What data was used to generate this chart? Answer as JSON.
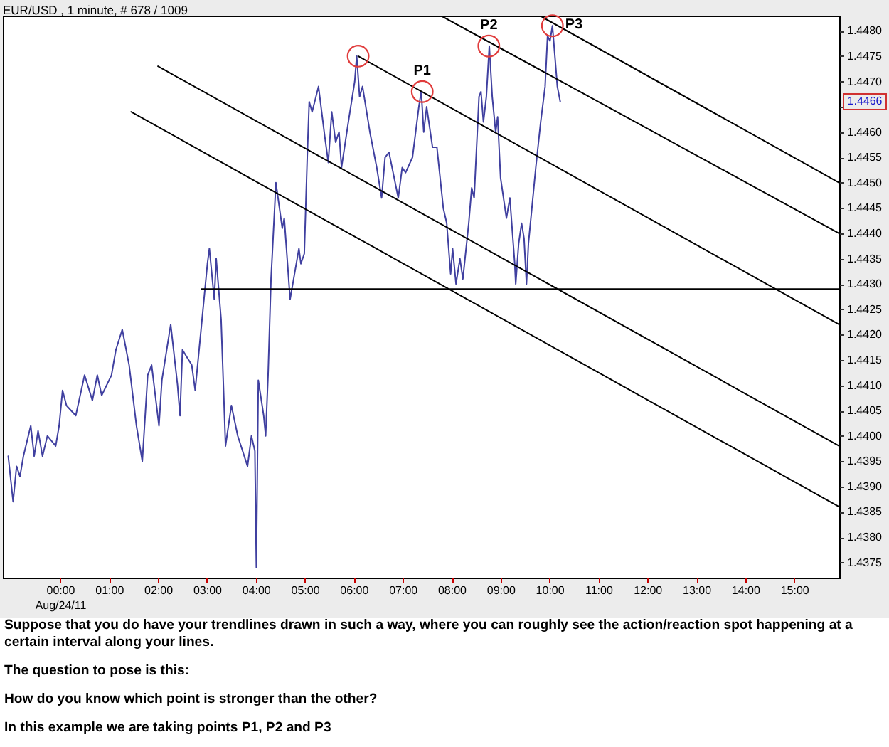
{
  "chart_data": {
    "type": "line",
    "title": "EUR/USD , 1 minute, # 678 / 1009",
    "xlim": [
      -1.17,
      15.92
    ],
    "ylim": [
      1.4372,
      1.4483
    ],
    "xticks": [
      {
        "value": 0,
        "label": "00:00\nAug/24/11"
      },
      {
        "value": 1,
        "label": "01:00"
      },
      {
        "value": 2,
        "label": "02:00"
      },
      {
        "value": 3,
        "label": "03:00"
      },
      {
        "value": 4,
        "label": "04:00"
      },
      {
        "value": 5,
        "label": "05:00"
      },
      {
        "value": 6,
        "label": "06:00"
      },
      {
        "value": 7,
        "label": "07:00"
      },
      {
        "value": 8,
        "label": "08:00"
      },
      {
        "value": 9,
        "label": "09:00"
      },
      {
        "value": 10,
        "label": "10:00"
      },
      {
        "value": 11,
        "label": "11:00"
      },
      {
        "value": 12,
        "label": "12:00"
      },
      {
        "value": 13,
        "label": "13:00"
      },
      {
        "value": 14,
        "label": "14:00"
      },
      {
        "value": 15,
        "label": "15:00"
      }
    ],
    "yticks": [
      1.4375,
      {
        "value": 1.438,
        "label": "1.4380"
      },
      1.4385,
      {
        "value": 1.439,
        "label": "1.4390"
      },
      1.4395,
      {
        "value": 1.44,
        "label": "1.4400"
      },
      1.4405,
      {
        "value": 1.441,
        "label": "1.4410"
      },
      1.4415,
      {
        "value": 1.442,
        "label": "1.4420"
      },
      1.4425,
      {
        "value": 1.443,
        "label": "1.4430"
      },
      1.4435,
      {
        "value": 1.444,
        "label": "1.4440"
      },
      1.4445,
      {
        "value": 1.445,
        "label": "1.4450"
      },
      1.4455,
      {
        "value": 1.446,
        "label": "1.4460"
      },
      {
        "value": 1.4465,
        "label": null
      },
      {
        "value": 1.447,
        "label": "1.4470"
      },
      1.4475,
      {
        "value": 1.448,
        "label": "1.4480"
      }
    ],
    "series": [
      {
        "color": "#4040a0",
        "x": [
          -1.06,
          -0.96,
          -0.89,
          -0.82,
          -0.75,
          -0.6,
          -0.53,
          -0.45,
          -0.36,
          -0.26,
          -0.09,
          -0.02,
          0.05,
          0.13,
          0.32,
          0.5,
          0.66,
          0.76,
          0.85,
          1.05,
          1.14,
          1.27,
          1.41,
          1.56,
          1.68,
          1.79,
          1.87,
          2.02,
          2.08,
          2.26,
          2.4,
          2.45,
          2.5,
          2.69,
          2.76,
          2.89,
          3.01,
          3.05,
          3.15,
          3.19,
          3.29,
          3.38,
          3.5,
          3.63,
          3.83,
          3.91,
          3.98,
          4.01,
          4.05,
          4.16,
          4.2,
          4.25,
          4.31,
          4.41,
          4.54,
          4.58,
          4.7,
          4.88,
          4.92,
          4.99,
          5.05,
          5.09,
          5.15,
          5.28,
          5.41,
          5.48,
          5.55,
          5.63,
          5.7,
          5.75,
          5.89,
          6.02,
          6.06,
          6.12,
          6.18,
          6.33,
          6.47,
          6.57,
          6.64,
          6.72,
          6.91,
          6.99,
          7.06,
          7.2,
          7.33,
          7.38,
          7.43,
          7.49,
          7.61,
          7.7,
          7.83,
          7.9,
          7.98,
          8.02,
          8.09,
          8.17,
          8.23,
          8.35,
          8.41,
          8.46,
          8.56,
          8.6,
          8.65,
          8.71,
          8.77,
          8.83,
          8.9,
          8.94,
          9.0,
          9.12,
          9.19,
          9.29,
          9.31,
          9.37,
          9.43,
          9.48,
          9.53,
          9.57,
          9.67,
          9.72,
          9.82,
          9.91,
          9.96,
          10.01,
          10.06,
          10.11,
          10.16,
          10.22
        ],
        "values": [
          1.4396,
          1.4387,
          1.4394,
          1.4392,
          1.4396,
          1.4402,
          1.4396,
          1.4401,
          1.4396,
          1.44,
          1.4398,
          1.4402,
          1.4409,
          1.4406,
          1.4404,
          1.4412,
          1.4407,
          1.4412,
          1.4408,
          1.4412,
          1.4417,
          1.4421,
          1.4414,
          1.4402,
          1.4395,
          1.4412,
          1.4414,
          1.4402,
          1.4411,
          1.4422,
          1.441,
          1.4404,
          1.4417,
          1.4414,
          1.4409,
          1.4422,
          1.4434,
          1.4437,
          1.4427,
          1.4435,
          1.4423,
          1.4398,
          1.4406,
          1.44,
          1.4394,
          1.44,
          1.4397,
          1.4374,
          1.4411,
          1.4404,
          1.44,
          1.4412,
          1.4431,
          1.445,
          1.4441,
          1.4443,
          1.4427,
          1.4437,
          1.4434,
          1.4436,
          1.4455,
          1.4466,
          1.4464,
          1.4469,
          1.4459,
          1.4454,
          1.4464,
          1.4458,
          1.446,
          1.4453,
          1.4462,
          1.447,
          1.4475,
          1.4467,
          1.4469,
          1.446,
          1.4453,
          1.4447,
          1.4455,
          1.4456,
          1.4447,
          1.4453,
          1.4452,
          1.4455,
          1.4465,
          1.4468,
          1.446,
          1.4465,
          1.4457,
          1.4457,
          1.4445,
          1.4442,
          1.4432,
          1.4437,
          1.443,
          1.4435,
          1.4431,
          1.4442,
          1.4449,
          1.4447,
          1.4467,
          1.4468,
          1.4462,
          1.4467,
          1.4477,
          1.4467,
          1.446,
          1.4463,
          1.4451,
          1.4443,
          1.4447,
          1.4434,
          1.443,
          1.4438,
          1.4442,
          1.4439,
          1.443,
          1.4438,
          1.4448,
          1.4453,
          1.4462,
          1.4469,
          1.4479,
          1.4478,
          1.4481,
          1.4475,
          1.4469,
          1.4466
        ]
      },
      {
        "color": "#000000",
        "x": [
          9.8,
          15.92
        ],
        "values": [
          1.4483,
          1.445
        ]
      },
      {
        "color": "#000000",
        "x": [
          7.78,
          15.92
        ],
        "values": [
          1.4483,
          1.444
        ]
      },
      {
        "color": "#000000",
        "x": [
          6.09,
          15.92
        ],
        "values": [
          1.4475,
          1.4422
        ]
      },
      {
        "color": "#000000",
        "x": [
          2.0,
          15.92
        ],
        "values": [
          1.4473,
          1.4398
        ]
      },
      {
        "color": "#000000",
        "x": [
          1.45,
          15.92
        ],
        "values": [
          1.4464,
          1.4386
        ]
      },
      {
        "color": "#000000",
        "x": [
          2.89,
          15.92
        ],
        "values": [
          1.4429,
          1.4429
        ]
      },
      {
        "type": "scatter",
        "color": "#e03c3c",
        "marker": "circle",
        "x": [
          6.09,
          7.4,
          8.76,
          10.06
        ],
        "values": [
          1.4475,
          1.4468,
          1.4477,
          1.4481
        ]
      }
    ],
    "annotations": [
      {
        "text": "P1",
        "x": 7.4,
        "y": 1.4468
      },
      {
        "text": "P2",
        "x": 8.76,
        "y": 1.4477
      },
      {
        "text": "P3",
        "x": 10.06,
        "y": 1.4481
      },
      {
        "text": "1.4466",
        "y": 1.4466
      },
      "Suppose that you do have your trendlines drawn in such a way, where you can roughly see the action/reaction spot happening at a certain interval along your lines.",
      "The question to pose is this:",
      "How do you know which point is stronger than the other?",
      "In this example we are taking points P1, P2 and P3"
    ]
  }
}
